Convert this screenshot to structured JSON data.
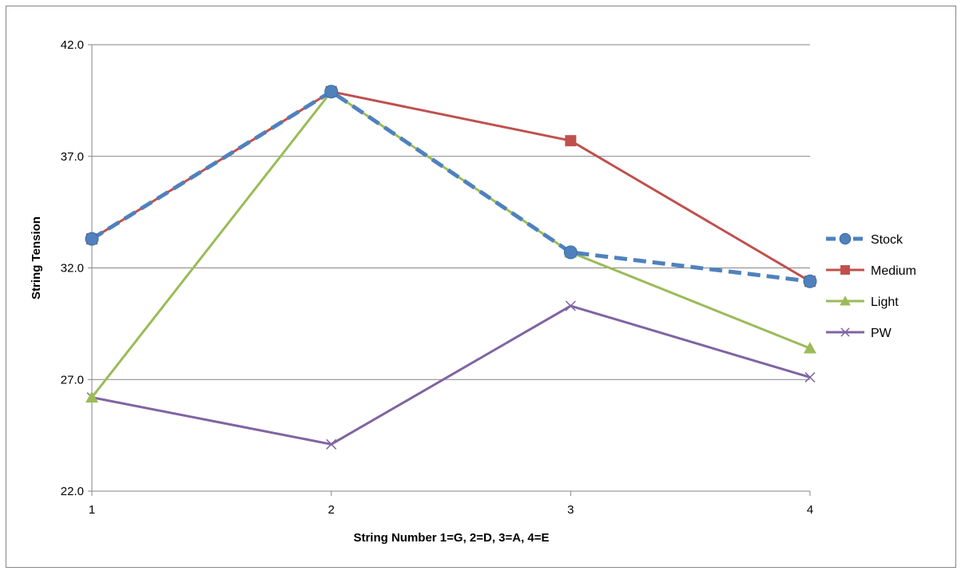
{
  "chart_data": {
    "type": "line",
    "title": "",
    "xlabel": "String Number 1=G, 2=D, 3=A, 4=E",
    "ylabel": "String Tension",
    "x": [
      1,
      2,
      3,
      4
    ],
    "x_tick_labels": [
      "1",
      "2",
      "3",
      "4"
    ],
    "ylim": [
      22.0,
      42.0
    ],
    "y_ticks": [
      22.0,
      27.0,
      32.0,
      37.0,
      42.0
    ],
    "y_tick_labels": [
      "22.0",
      "27.0",
      "32.0",
      "37.0",
      "42.0"
    ],
    "grid": true,
    "legend_position": "right",
    "series": [
      {
        "name": "Stock",
        "values": [
          33.3,
          39.9,
          32.7,
          31.4
        ],
        "color": "#4F81BD",
        "marker": "circle",
        "dashed": true
      },
      {
        "name": "Medium",
        "values": [
          33.3,
          39.9,
          37.7,
          31.4
        ],
        "color": "#C0504D",
        "marker": "square",
        "dashed": false
      },
      {
        "name": "Light",
        "values": [
          26.2,
          39.9,
          32.7,
          28.4
        ],
        "color": "#9BBB59",
        "marker": "triangle",
        "dashed": false
      },
      {
        "name": "PW",
        "values": [
          26.2,
          24.1,
          30.3,
          27.1
        ],
        "color": "#8064A2",
        "marker": "x",
        "dashed": false
      }
    ]
  }
}
